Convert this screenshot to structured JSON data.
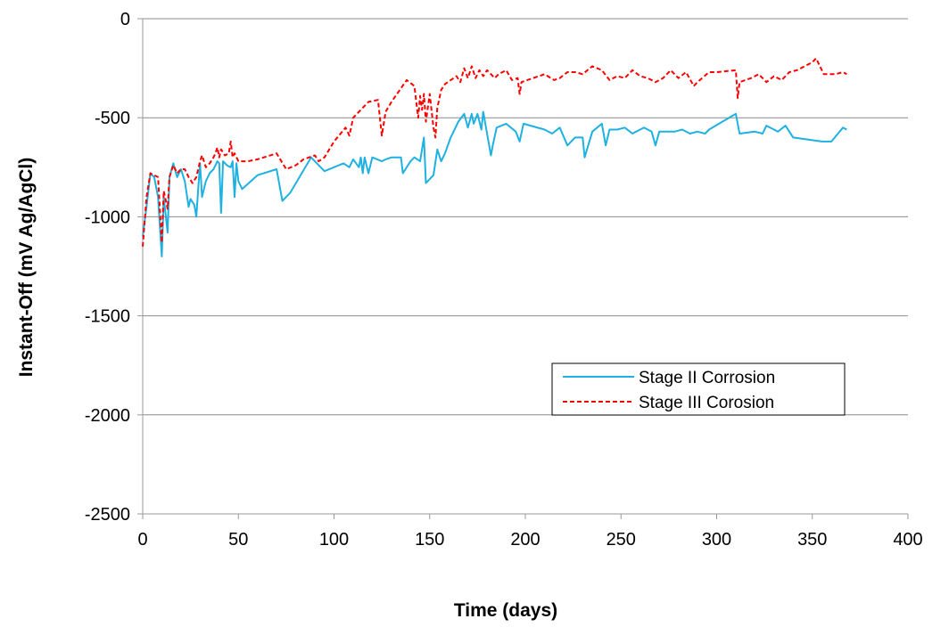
{
  "chart_data": {
    "type": "line",
    "xlabel": "Time (days)",
    "ylabel": "Instant-Off (mV Ag/AgCl)",
    "xlim": [
      0,
      400
    ],
    "ylim": [
      -2500,
      0
    ],
    "xticks": [
      "0",
      "50",
      "100",
      "150",
      "200",
      "250",
      "300",
      "350",
      "400"
    ],
    "yticks": [
      "0",
      "-500",
      "-1000",
      "-1500",
      "-2000",
      "-2500"
    ],
    "grid": "horizontal",
    "legend_position": "lower-right",
    "series": [
      {
        "name": "Stage II Corrosion",
        "color": "#1FB1E0",
        "style": "solid",
        "points": [
          [
            0,
            -1100
          ],
          [
            2,
            -950
          ],
          [
            4,
            -780
          ],
          [
            6,
            -800
          ],
          [
            8,
            -900
          ],
          [
            10,
            -1200
          ],
          [
            11,
            -900
          ],
          [
            13,
            -1080
          ],
          [
            14,
            -800
          ],
          [
            16,
            -730
          ],
          [
            18,
            -800
          ],
          [
            20,
            -760
          ],
          [
            22,
            -820
          ],
          [
            24,
            -950
          ],
          [
            25,
            -910
          ],
          [
            27,
            -940
          ],
          [
            28,
            -1000
          ],
          [
            29,
            -860
          ],
          [
            30,
            -730
          ],
          [
            31,
            -900
          ],
          [
            33,
            -820
          ],
          [
            35,
            -780
          ],
          [
            37,
            -760
          ],
          [
            39,
            -720
          ],
          [
            40,
            -730
          ],
          [
            41,
            -980
          ],
          [
            42,
            -720
          ],
          [
            44,
            -740
          ],
          [
            46,
            -750
          ],
          [
            47,
            -720
          ],
          [
            48,
            -900
          ],
          [
            49,
            -730
          ],
          [
            50,
            -820
          ],
          [
            52,
            -860
          ],
          [
            60,
            -790
          ],
          [
            70,
            -760
          ],
          [
            73,
            -920
          ],
          [
            77,
            -880
          ],
          [
            88,
            -700
          ],
          [
            95,
            -770
          ],
          [
            105,
            -730
          ],
          [
            108,
            -750
          ],
          [
            110,
            -710
          ],
          [
            113,
            -750
          ],
          [
            114,
            -700
          ],
          [
            115,
            -780
          ],
          [
            116,
            -700
          ],
          [
            118,
            -780
          ],
          [
            120,
            -700
          ],
          [
            125,
            -720
          ],
          [
            127,
            -710
          ],
          [
            130,
            -700
          ],
          [
            135,
            -700
          ],
          [
            136,
            -780
          ],
          [
            140,
            -720
          ],
          [
            142,
            -700
          ],
          [
            145,
            -720
          ],
          [
            147,
            -600
          ],
          [
            148,
            -830
          ],
          [
            152,
            -790
          ],
          [
            154,
            -660
          ],
          [
            156,
            -720
          ],
          [
            158,
            -680
          ],
          [
            161,
            -600
          ],
          [
            165,
            -520
          ],
          [
            168,
            -480
          ],
          [
            170,
            -550
          ],
          [
            172,
            -480
          ],
          [
            173,
            -530
          ],
          [
            175,
            -480
          ],
          [
            177,
            -560
          ],
          [
            178,
            -470
          ],
          [
            180,
            -580
          ],
          [
            182,
            -690
          ],
          [
            183,
            -640
          ],
          [
            185,
            -550
          ],
          [
            190,
            -530
          ],
          [
            195,
            -570
          ],
          [
            197,
            -620
          ],
          [
            199,
            -530
          ],
          [
            210,
            -560
          ],
          [
            214,
            -580
          ],
          [
            218,
            -550
          ],
          [
            222,
            -640
          ],
          [
            226,
            -600
          ],
          [
            230,
            -600
          ],
          [
            231,
            -700
          ],
          [
            235,
            -570
          ],
          [
            240,
            -530
          ],
          [
            242,
            -640
          ],
          [
            244,
            -560
          ],
          [
            248,
            -560
          ],
          [
            252,
            -550
          ],
          [
            256,
            -580
          ],
          [
            262,
            -550
          ],
          [
            266,
            -570
          ],
          [
            268,
            -640
          ],
          [
            270,
            -570
          ],
          [
            278,
            -570
          ],
          [
            282,
            -560
          ],
          [
            286,
            -580
          ],
          [
            290,
            -570
          ],
          [
            294,
            -580
          ],
          [
            296,
            -560
          ],
          [
            310,
            -480
          ],
          [
            312,
            -580
          ],
          [
            320,
            -570
          ],
          [
            324,
            -580
          ],
          [
            326,
            -540
          ],
          [
            332,
            -570
          ],
          [
            336,
            -540
          ],
          [
            340,
            -600
          ],
          [
            355,
            -620
          ],
          [
            360,
            -620
          ],
          [
            366,
            -550
          ],
          [
            368,
            -560
          ]
        ]
      },
      {
        "name": "Stage III Corosion",
        "color": "#FF0000",
        "style": "dashed",
        "points": [
          [
            0,
            -1150
          ],
          [
            2,
            -900
          ],
          [
            4,
            -780
          ],
          [
            6,
            -790
          ],
          [
            8,
            -800
          ],
          [
            10,
            -1130
          ],
          [
            11,
            -870
          ],
          [
            13,
            -960
          ],
          [
            14,
            -800
          ],
          [
            16,
            -740
          ],
          [
            18,
            -780
          ],
          [
            20,
            -760
          ],
          [
            22,
            -760
          ],
          [
            24,
            -800
          ],
          [
            26,
            -830
          ],
          [
            28,
            -800
          ],
          [
            30,
            -720
          ],
          [
            31,
            -690
          ],
          [
            33,
            -750
          ],
          [
            35,
            -730
          ],
          [
            37,
            -700
          ],
          [
            38,
            -680
          ],
          [
            39,
            -650
          ],
          [
            40,
            -700
          ],
          [
            41,
            -660
          ],
          [
            43,
            -690
          ],
          [
            45,
            -680
          ],
          [
            46,
            -620
          ],
          [
            47,
            -700
          ],
          [
            48,
            -680
          ],
          [
            50,
            -720
          ],
          [
            55,
            -720
          ],
          [
            60,
            -710
          ],
          [
            70,
            -680
          ],
          [
            75,
            -760
          ],
          [
            80,
            -740
          ],
          [
            84,
            -710
          ],
          [
            90,
            -690
          ],
          [
            92,
            -720
          ],
          [
            95,
            -700
          ],
          [
            100,
            -620
          ],
          [
            106,
            -550
          ],
          [
            108,
            -590
          ],
          [
            110,
            -500
          ],
          [
            118,
            -420
          ],
          [
            123,
            -410
          ],
          [
            125,
            -590
          ],
          [
            127,
            -470
          ],
          [
            130,
            -420
          ],
          [
            138,
            -310
          ],
          [
            142,
            -340
          ],
          [
            144,
            -500
          ],
          [
            145,
            -390
          ],
          [
            146,
            -460
          ],
          [
            147,
            -380
          ],
          [
            148,
            -520
          ],
          [
            150,
            -380
          ],
          [
            152,
            -550
          ],
          [
            153,
            -600
          ],
          [
            154,
            -450
          ],
          [
            156,
            -360
          ],
          [
            158,
            -330
          ],
          [
            164,
            -290
          ],
          [
            166,
            -320
          ],
          [
            168,
            -250
          ],
          [
            170,
            -300
          ],
          [
            172,
            -240
          ],
          [
            174,
            -300
          ],
          [
            176,
            -260
          ],
          [
            178,
            -290
          ],
          [
            180,
            -260
          ],
          [
            184,
            -300
          ],
          [
            186,
            -280
          ],
          [
            190,
            -260
          ],
          [
            193,
            -310
          ],
          [
            196,
            -300
          ],
          [
            197,
            -380
          ],
          [
            198,
            -320
          ],
          [
            210,
            -280
          ],
          [
            215,
            -310
          ],
          [
            218,
            -300
          ],
          [
            222,
            -270
          ],
          [
            226,
            -270
          ],
          [
            230,
            -280
          ],
          [
            235,
            -240
          ],
          [
            240,
            -260
          ],
          [
            244,
            -310
          ],
          [
            248,
            -290
          ],
          [
            252,
            -300
          ],
          [
            256,
            -260
          ],
          [
            260,
            -290
          ],
          [
            264,
            -300
          ],
          [
            268,
            -320
          ],
          [
            272,
            -300
          ],
          [
            276,
            -260
          ],
          [
            280,
            -300
          ],
          [
            284,
            -270
          ],
          [
            288,
            -340
          ],
          [
            290,
            -320
          ],
          [
            296,
            -270
          ],
          [
            300,
            -270
          ],
          [
            310,
            -260
          ],
          [
            311,
            -400
          ],
          [
            312,
            -320
          ],
          [
            318,
            -300
          ],
          [
            322,
            -280
          ],
          [
            326,
            -320
          ],
          [
            330,
            -290
          ],
          [
            334,
            -310
          ],
          [
            338,
            -270
          ],
          [
            342,
            -260
          ],
          [
            346,
            -240
          ],
          [
            350,
            -220
          ],
          [
            352,
            -200
          ],
          [
            356,
            -280
          ],
          [
            362,
            -280
          ],
          [
            366,
            -270
          ],
          [
            368,
            -280
          ]
        ]
      }
    ]
  }
}
